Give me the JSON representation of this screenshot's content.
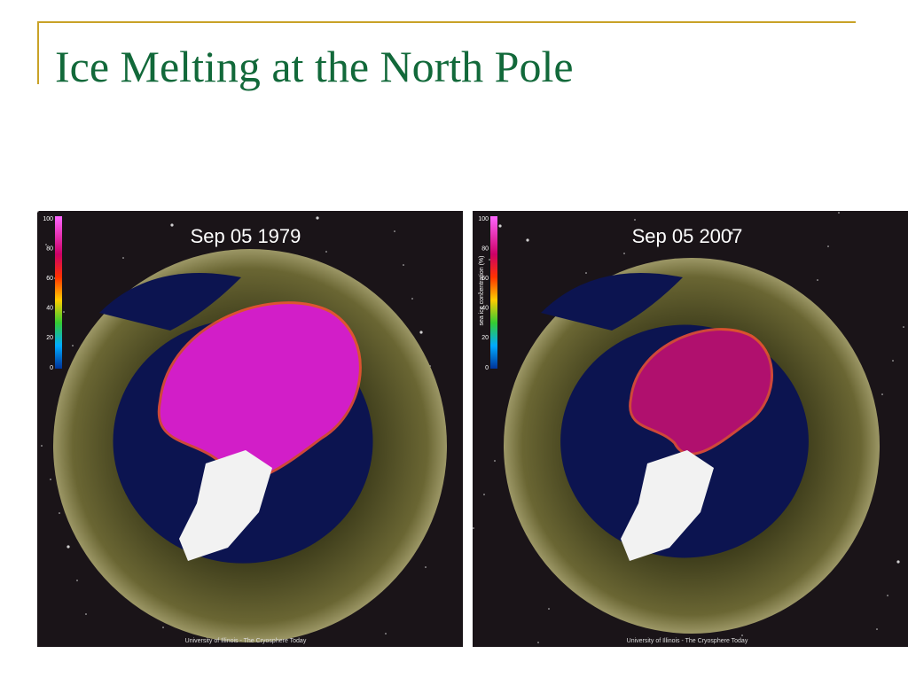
{
  "slide": {
    "title": "Ice Melting at the North Pole",
    "images": [
      {
        "date": "Sep 05 1979",
        "colorbar_ticks": [
          100,
          80,
          60,
          40,
          20,
          0
        ],
        "credit": "University of Illinois - The Cryosphere Today"
      },
      {
        "date": "Sep 05 2007",
        "colorbar_ticks": [
          100,
          80,
          60,
          40,
          20,
          0
        ],
        "colorbar_label": "sea ice concentration (%)",
        "credit": "University of Illinois - The Cryosphere Today"
      }
    ]
  }
}
